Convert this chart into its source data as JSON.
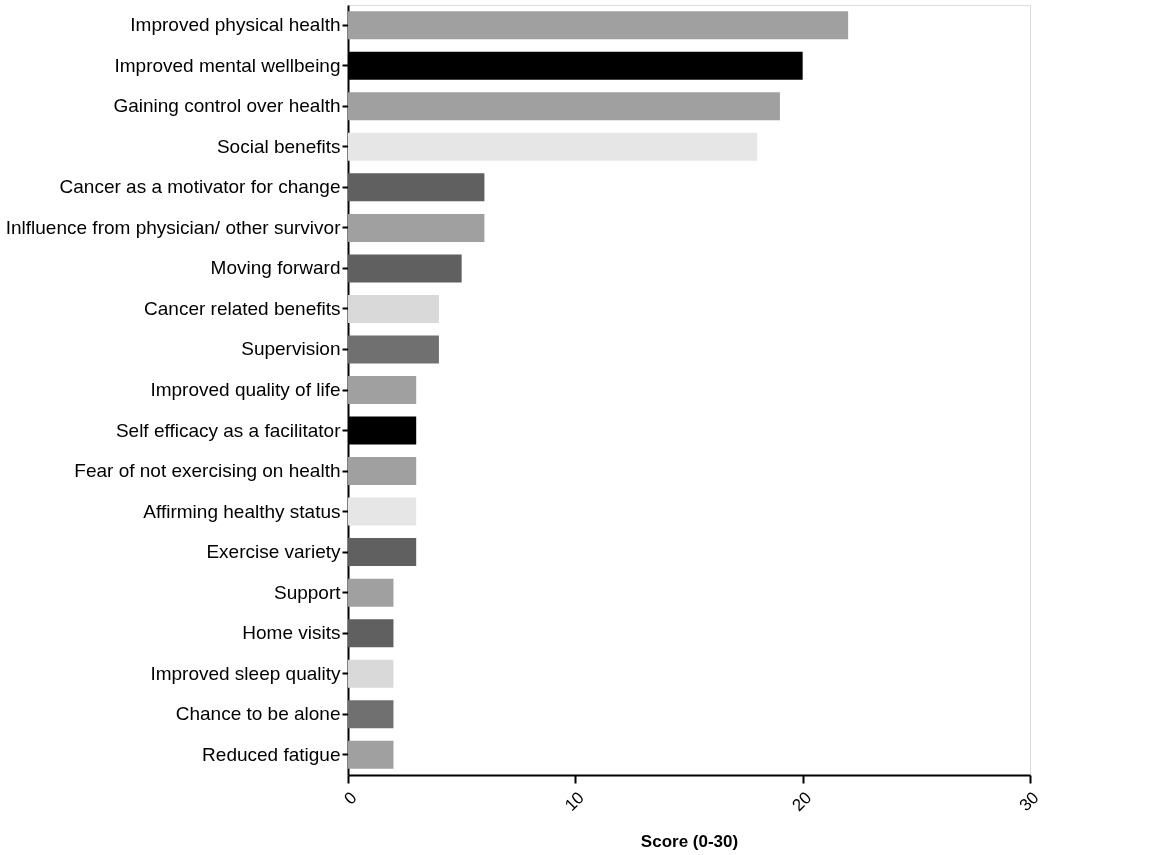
{
  "chart_data": {
    "type": "bar",
    "orientation": "horizontal",
    "xlabel": "Score (0-30)",
    "categories": [
      "Improved physical health",
      "Improved mental wellbeing",
      "Gaining control over health",
      "Social benefits",
      "Cancer as a motivator for change",
      "Inlfluence from physician/ other survivor",
      "Moving forward",
      "Cancer related benefits",
      "Supervision",
      "Improved quality of life",
      "Self efficacy as a facilitator",
      "Fear of not exercising on health",
      "Affirming healthy status",
      "Exercise variety",
      "Support",
      "Home visits",
      "Improved sleep quality",
      "Chance to be alone",
      "Reduced fatigue"
    ],
    "values": [
      22,
      20,
      19,
      18,
      6,
      6,
      5,
      4,
      4,
      3,
      3,
      3,
      3,
      3,
      2,
      2,
      2,
      2,
      2
    ],
    "colors": [
      "#a0a0a0",
      "#000000",
      "#a0a0a0",
      "#e6e6e6",
      "#606060",
      "#a0a0a0",
      "#606060",
      "#d9d9d9",
      "#707070",
      "#a0a0a0",
      "#000000",
      "#a0a0a0",
      "#e6e6e6",
      "#606060",
      "#a0a0a0",
      "#606060",
      "#d9d9d9",
      "#707070",
      "#a0a0a0"
    ],
    "xlim": [
      0,
      30
    ],
    "xticks": [
      0,
      10,
      20,
      30
    ],
    "grid": false
  }
}
